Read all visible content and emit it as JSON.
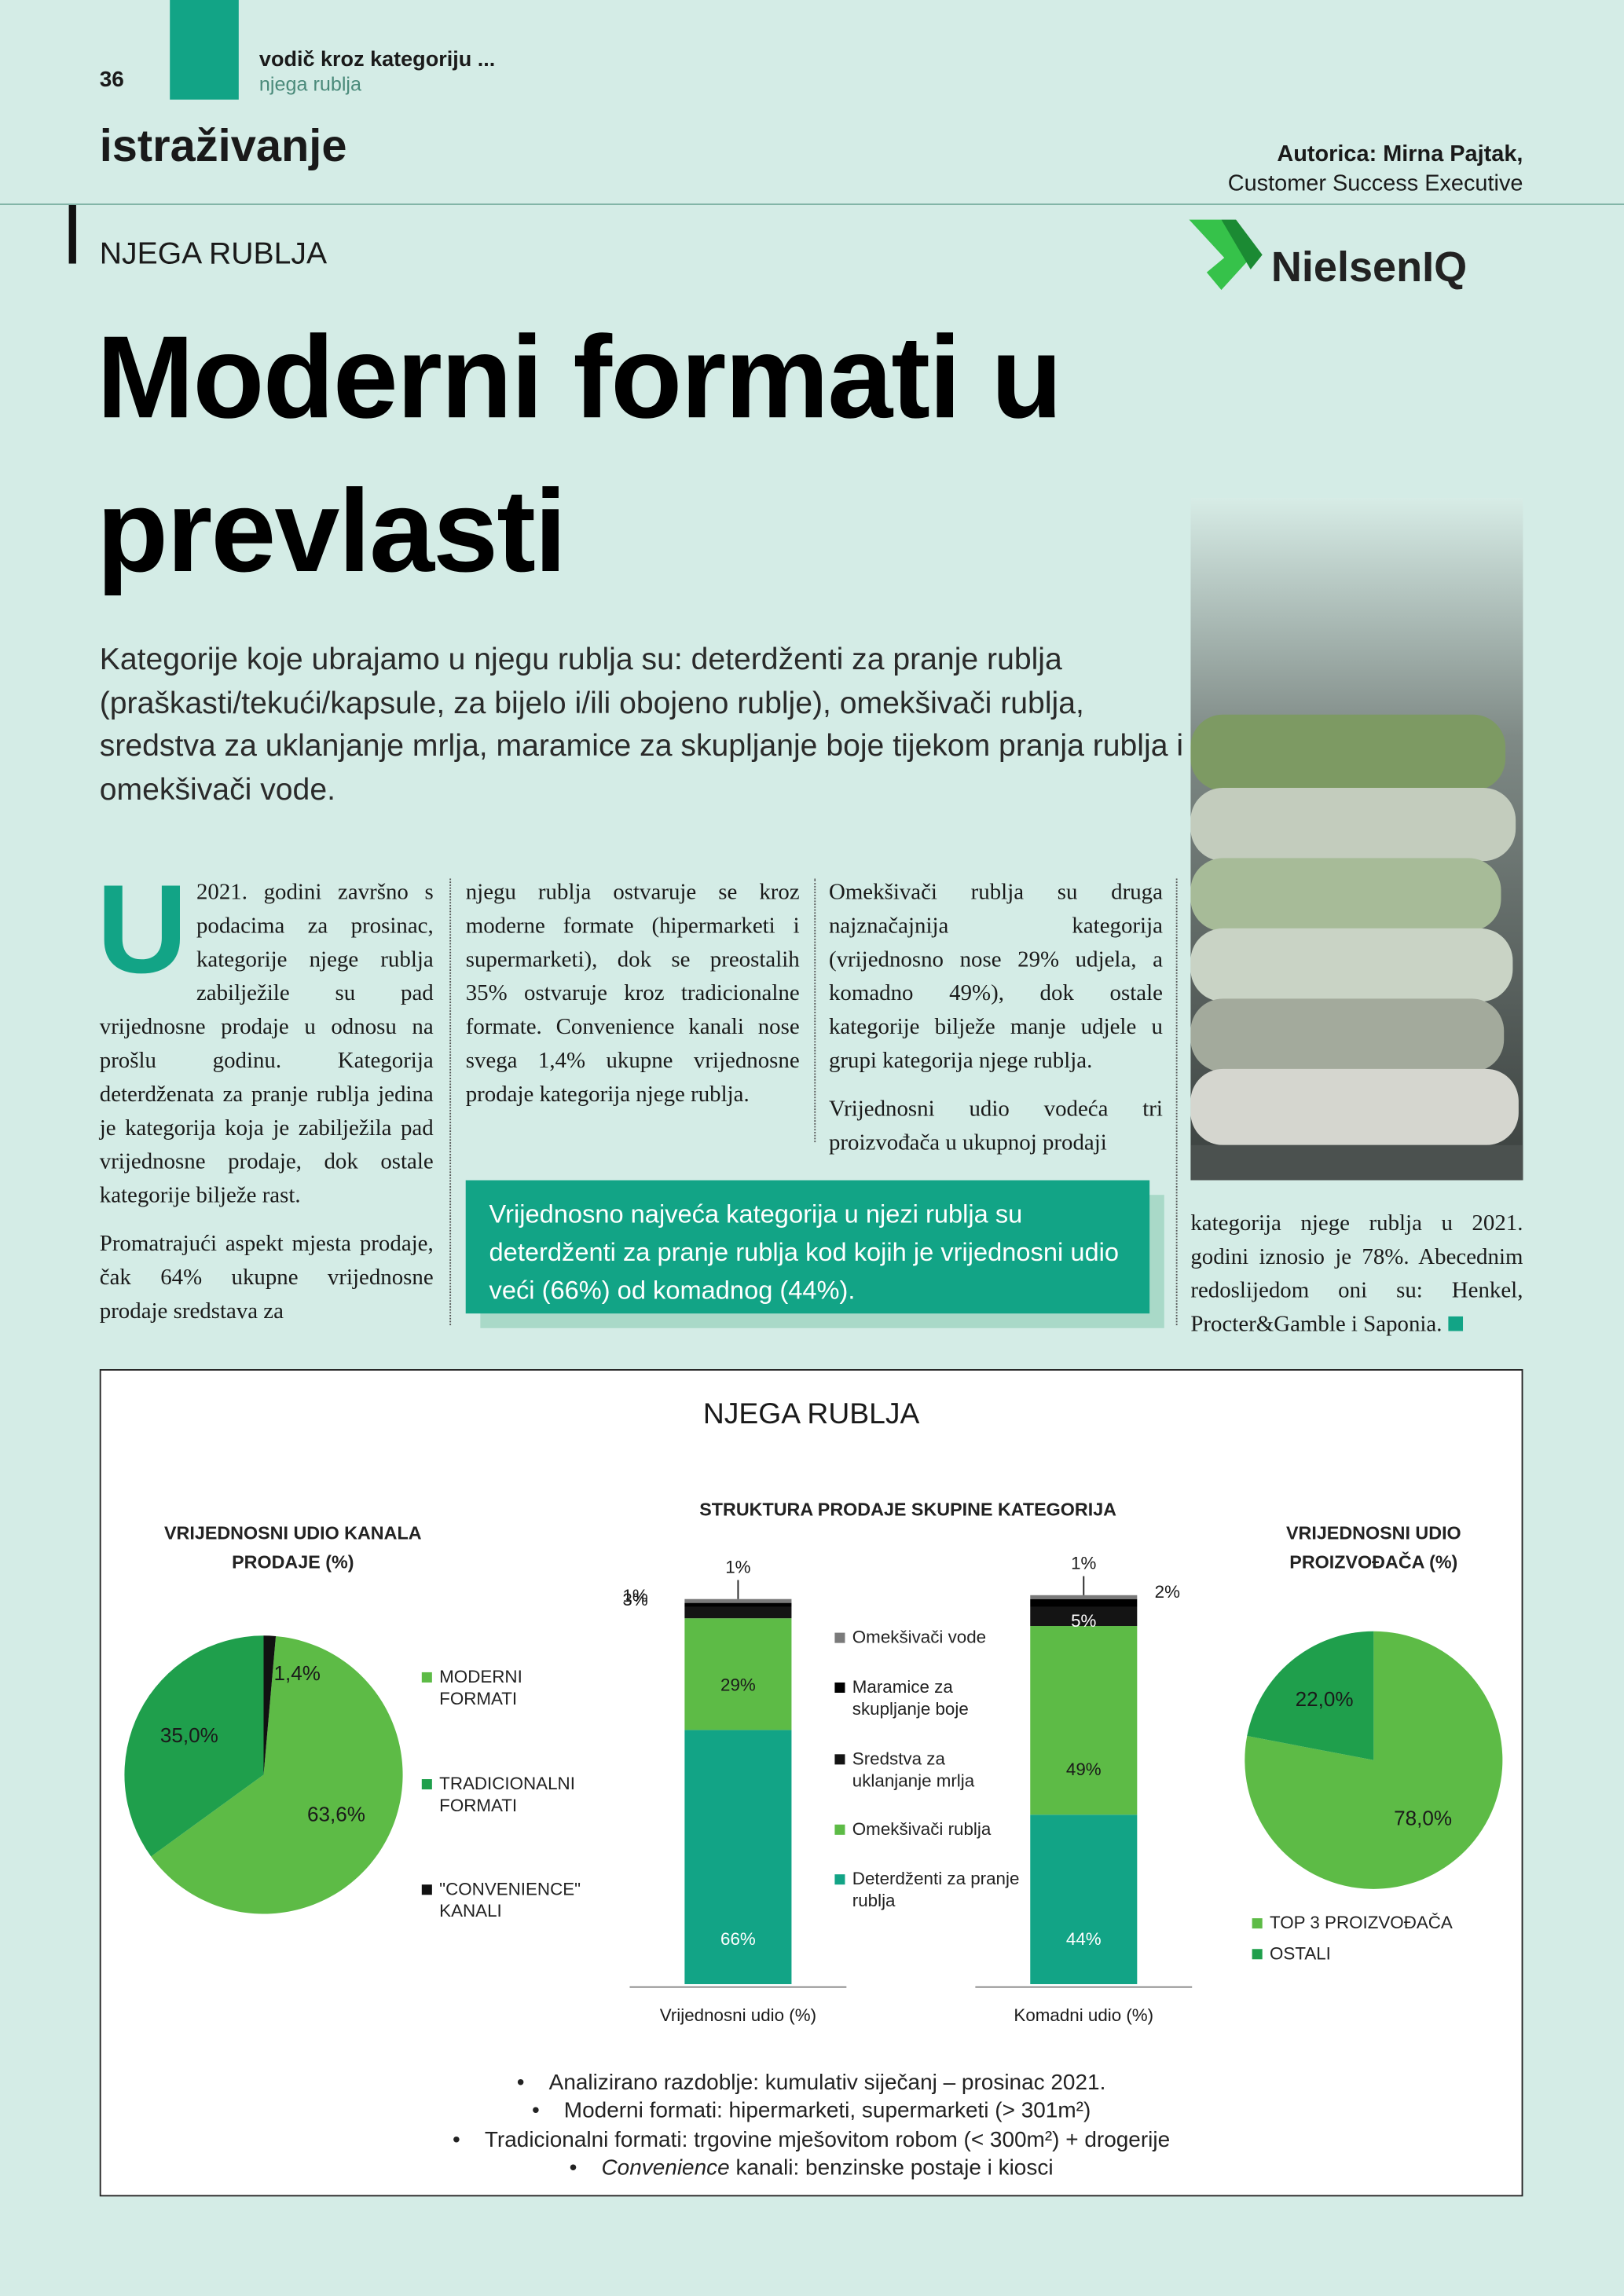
{
  "header": {
    "page_number": "36",
    "series": "vodič kroz kategoriju ...",
    "subseries": "njega rublja",
    "section": "istraživanje",
    "author": "Autorica: Mirna Pajtak,",
    "author_role": "Customer Success Executive",
    "kicker": "NJEGA RUBLJA",
    "logo": "NielsenIQ"
  },
  "headline": "Moderni formati u prevlasti",
  "intro": "Kategorije koje ubrajamo u njegu rublja su: deterdženti za pranje rublja (praškasti/tekući/kapsule, za bijelo i/ili obojeno rublje), omekšivači rublja, sredstva za uklanjanje mrlja, maramice za skupljanje boje tijekom pranja rublja i omekšivači vode.",
  "article": {
    "dropcap": "U",
    "columns": [
      [
        "2021. godini završno s podacima za prosinac, kategorije njege rublja zabilježile su pad vrijednosne prodaje u odnosu na prošlu godinu. Kategorija deterdženata za pranje rublja jedina je kategorija koja je zabilježila pad vrijednosne prodaje, dok ostale kategorije bilježe rast.",
        "Promatrajući aspekt mjesta prodaje, čak 64% ukupne vrijednosne prodaje sredstava za"
      ],
      [
        "njegu rublja ostvaruje se kroz moderne formate (hipermarketi i supermarketi), dok se preostalih 35% ostvaruje kroz tradicionalne formate. Convenience kanali nose svega 1,4% ukupne vrijednosne prodaje kategorija njege rublja."
      ],
      [
        "Omekšivači rublja su druga najznačajnija kategorija (vrijednosno nose 29% udjela, a komadno 49%), dok ostale kategorije bilježe manje udjele u grupi kategorija njege rublja.",
        "Vrijednosni udio vodeća tri proizvođača u ukupnoj prodaji"
      ],
      [
        "kategorija njege rublja u 2021. godini iznosio je 78%. Abecednim redoslijedom oni su: Henkel, Procter&Gamble i Saponia."
      ]
    ]
  },
  "callout": "Vrijednosno najveća kategorija u njezi rublja su deterdženti za pranje rublja kod kojih je vrijednosni udio veći (66%) od komadnog (44%).",
  "figure": {
    "title": "NJEGA RUBLJA",
    "notes": [
      "Analizirano razdoblje: kumulativ siječanj – prosinac 2021.",
      "Moderni formati: hipermarketi, supermarketi (> 301m²)",
      "Tradicionalni formati: trgovine mješovitom robom (< 300m²) + drogerije",
      {
        "em": "Convenience",
        "text": "kanali: benzinske postaje i kiosci"
      }
    ]
  },
  "chart_data": [
    {
      "type": "pie",
      "title": "VRIJEDNOSNI UDIO KANALA PRODAJE (%)",
      "categories": [
        "MODERNI FORMATI",
        "TRADICIONALNI FORMATI",
        "\"CONVENIENCE\" KANALI"
      ],
      "values": [
        63.6,
        35.0,
        1.4
      ],
      "value_labels": [
        "63,6%",
        "35,0%",
        "1,4%"
      ],
      "colors": [
        "#5dbb46",
        "#1f9f4c",
        "#111111"
      ]
    },
    {
      "type": "bar",
      "stacked": true,
      "title": "STRUKTURA PRODAJE SKUPINE KATEGORIJA",
      "categories": [
        "Vrijednosni udio (%)",
        "Komadni udio (%)"
      ],
      "ylim": [
        0,
        100
      ],
      "series": [
        {
          "name": "Deterdženti za pranje rublja",
          "color": "#12a486",
          "values": [
            66,
            44
          ],
          "value_labels": [
            "66%",
            "44%"
          ]
        },
        {
          "name": "Omekšivači rublja",
          "color": "#5dbb46",
          "values": [
            29,
            49
          ],
          "value_labels": [
            "29%",
            "49%"
          ]
        },
        {
          "name": "Sredstva za uklanjanje mrlja",
          "color": "#141414",
          "values": [
            3,
            5
          ],
          "value_labels": [
            "3%",
            "5%"
          ]
        },
        {
          "name": "Maramice za skupljanje boje",
          "color": "#000000",
          "values": [
            1,
            2
          ],
          "value_labels": [
            "1%",
            "2%"
          ]
        },
        {
          "name": "Omekšivači vode",
          "color": "#7a7a7a",
          "values": [
            1,
            1
          ],
          "value_labels": [
            "1%",
            "1%"
          ]
        }
      ]
    },
    {
      "type": "pie",
      "title": "VRIJEDNOSNI UDIO PROIZVOĐAČA (%)",
      "categories": [
        "TOP 3 PROIZVOĐAČA",
        "OSTALI"
      ],
      "values": [
        78.0,
        22.0
      ],
      "value_labels": [
        "78,0%",
        "22,0%"
      ],
      "colors": [
        "#5dbb46",
        "#1f9f4c"
      ]
    }
  ]
}
